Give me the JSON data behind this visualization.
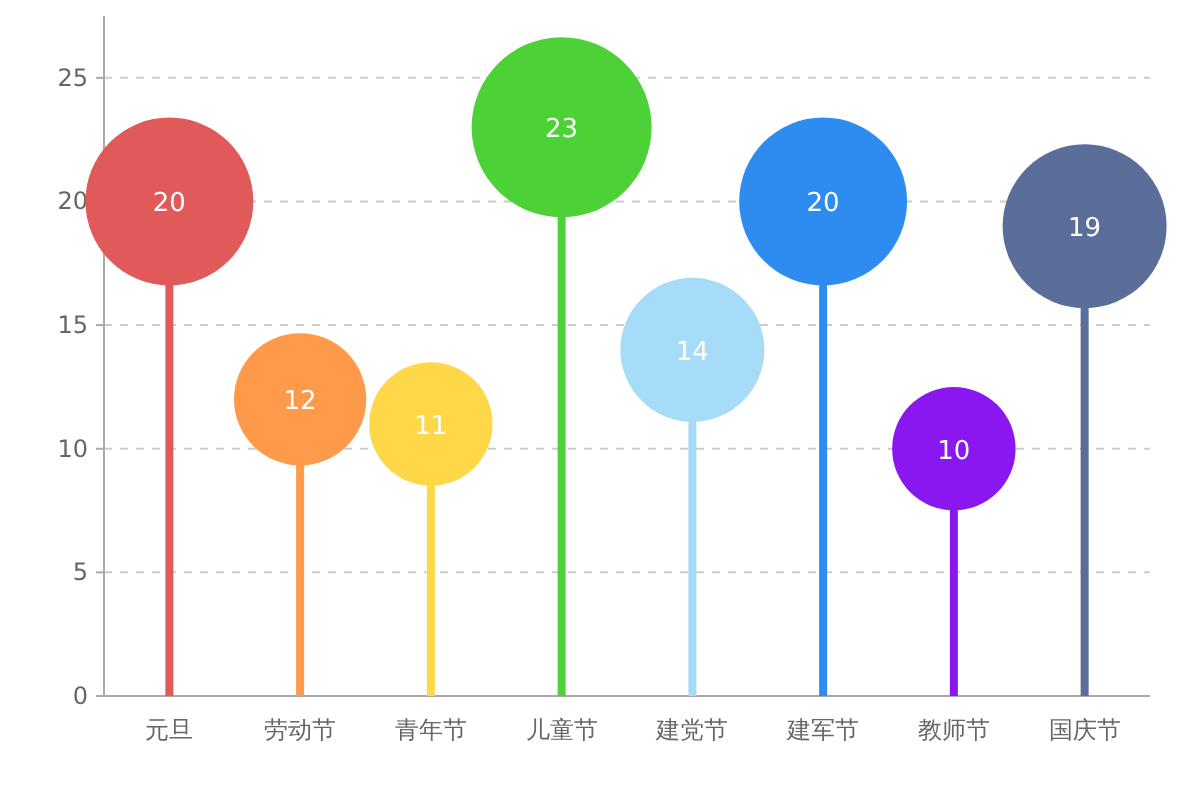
{
  "chart_data": {
    "type": "lollipop",
    "categories": [
      "元旦",
      "劳动节",
      "青年节",
      "儿童节",
      "建党节",
      "建军节",
      "教师节",
      "国庆节"
    ],
    "values": [
      20,
      12,
      11,
      23,
      14,
      20,
      10,
      19
    ],
    "sizes": [
      0.87,
      0.54,
      0.47,
      1,
      0.64,
      0.87,
      0.47,
      0.83
    ],
    "colors": [
      "#e05a5a",
      "#ff9a4a",
      "#ffd84a",
      "#4cd137",
      "#a6dcf7",
      "#2e8cf0",
      "#8a17f0",
      "#5a6e99"
    ],
    "ylim": [
      0,
      27.5
    ],
    "yticks": [
      0,
      5,
      10,
      15,
      20,
      25
    ],
    "grid": "y",
    "data_labels": true
  }
}
